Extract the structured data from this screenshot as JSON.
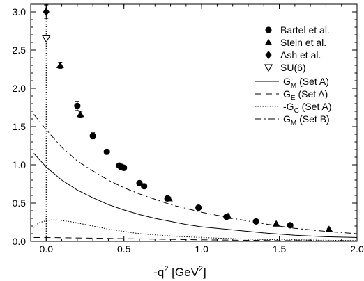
{
  "chart_data": {
    "type": "scatter",
    "xlabel": "-q² [GeV²]",
    "xlabel_parts": {
      "base": "-q",
      "sup": "2",
      "unit_open": " [GeV",
      "unit_sup": "2",
      "unit_close": "]"
    },
    "xlim": [
      -0.1,
      2.0
    ],
    "ylim": [
      0.0,
      3.1
    ],
    "x_ticks": [
      0.0,
      0.5,
      1.0,
      1.5,
      2.0
    ],
    "x_tick_labels": [
      "0.0",
      "0.5",
      "1.0",
      "1.5",
      "2.0"
    ],
    "y_ticks": [
      0.0,
      0.5,
      1.0,
      1.5,
      2.0,
      2.5,
      3.0
    ],
    "y_tick_labels": [
      "0.0",
      "0.5",
      "1.0",
      "1.5",
      "2.0",
      "2.5",
      "3.0"
    ],
    "grid": false,
    "legend_position": "top-right",
    "reference_line": {
      "x": 0.0,
      "style": "dotted"
    },
    "points": [
      {
        "name": "Bartel et al.",
        "marker": "circle",
        "data": [
          {
            "x": 0.2,
            "y": 1.77,
            "err": 0.06
          },
          {
            "x": 0.3,
            "y": 1.38,
            "err": 0.04
          },
          {
            "x": 0.39,
            "y": 1.17,
            "err": 0.03
          },
          {
            "x": 0.47,
            "y": 0.99,
            "err": 0.03
          },
          {
            "x": 0.5,
            "y": 0.96,
            "err": 0.03
          },
          {
            "x": 0.6,
            "y": 0.76,
            "err": 0.02
          },
          {
            "x": 0.63,
            "y": 0.72,
            "err": 0.02
          },
          {
            "x": 0.78,
            "y": 0.56,
            "err": 0.02
          },
          {
            "x": 0.98,
            "y": 0.44,
            "err": 0.015
          },
          {
            "x": 1.16,
            "y": 0.32,
            "err": 0.012
          },
          {
            "x": 1.35,
            "y": 0.26,
            "err": 0.01
          },
          {
            "x": 1.57,
            "y": 0.21,
            "err": 0.01
          }
        ]
      },
      {
        "name": "Stein et al.",
        "marker": "triangle-up",
        "data": [
          {
            "x": 0.09,
            "y": 2.3,
            "err": 0.04
          },
          {
            "x": 0.22,
            "y": 1.66,
            "err": 0.04
          },
          {
            "x": 0.49,
            "y": 0.97,
            "err": 0.03
          },
          {
            "x": 0.79,
            "y": 0.56,
            "err": 0.02
          },
          {
            "x": 1.17,
            "y": 0.33,
            "err": 0.015
          },
          {
            "x": 1.48,
            "y": 0.23,
            "err": 0.01
          },
          {
            "x": 1.82,
            "y": 0.16,
            "err": 0.01
          }
        ]
      },
      {
        "name": "Ash et al.",
        "marker": "diamond",
        "data": [
          {
            "x": 0.0,
            "y": 3.0,
            "err": 0.09
          }
        ]
      },
      {
        "name": "SU(6)",
        "marker": "triangle-down-open",
        "data": [
          {
            "x": 0.0,
            "y": 2.65,
            "err": 0.0
          }
        ]
      }
    ],
    "lines": [
      {
        "name": "G_M (Set A)",
        "label_main": "G",
        "label_sub": "M",
        "label_rest": " (Set A)",
        "dash": "solid",
        "x": [
          -0.08,
          0.0,
          0.1,
          0.2,
          0.3,
          0.4,
          0.5,
          0.6,
          0.7,
          0.8,
          0.9,
          1.0,
          1.2,
          1.4,
          1.6,
          1.8,
          2.0
        ],
        "y": [
          1.15,
          0.97,
          0.8,
          0.67,
          0.57,
          0.48,
          0.41,
          0.35,
          0.3,
          0.26,
          0.22,
          0.19,
          0.15,
          0.11,
          0.08,
          0.06,
          0.05
        ]
      },
      {
        "name": "G_E (Set A)",
        "label_main": "G",
        "label_sub": "E",
        "label_rest": " (Set A)",
        "dash": "dashed",
        "x": [
          -0.08,
          0.0,
          0.2,
          0.5,
          1.0,
          1.5,
          2.0
        ],
        "y": [
          0.05,
          0.05,
          0.045,
          0.035,
          0.02,
          0.01,
          0.005
        ]
      },
      {
        "name": "-G_C (Set A)",
        "label_main": "-G",
        "label_sub": "C",
        "label_rest": " (Set A)",
        "dash": "dotted",
        "x": [
          -0.08,
          -0.05,
          0.0,
          0.03,
          0.07,
          0.1,
          0.15,
          0.2,
          0.3,
          0.4,
          0.5,
          0.6,
          0.8,
          1.0,
          1.2,
          1.4,
          1.6,
          2.0
        ],
        "y": [
          0.18,
          0.24,
          0.27,
          0.28,
          0.28,
          0.27,
          0.26,
          0.24,
          0.2,
          0.16,
          0.13,
          0.1,
          0.07,
          0.05,
          0.035,
          0.025,
          0.02,
          0.01
        ]
      },
      {
        "name": "G_M (Set B)",
        "label_main": "G",
        "label_sub": "M",
        "label_rest": " (Set B)",
        "dash": "dashdot",
        "x": [
          -0.08,
          -0.04,
          0.0,
          0.1,
          0.2,
          0.3,
          0.4,
          0.5,
          0.6,
          0.7,
          0.8,
          0.9,
          1.0,
          1.2,
          1.4,
          1.6,
          1.8,
          2.0
        ],
        "y": [
          1.66,
          1.56,
          1.46,
          1.23,
          1.05,
          0.92,
          0.8,
          0.7,
          0.62,
          0.55,
          0.48,
          0.43,
          0.38,
          0.3,
          0.23,
          0.17,
          0.13,
          0.1
        ]
      }
    ]
  }
}
